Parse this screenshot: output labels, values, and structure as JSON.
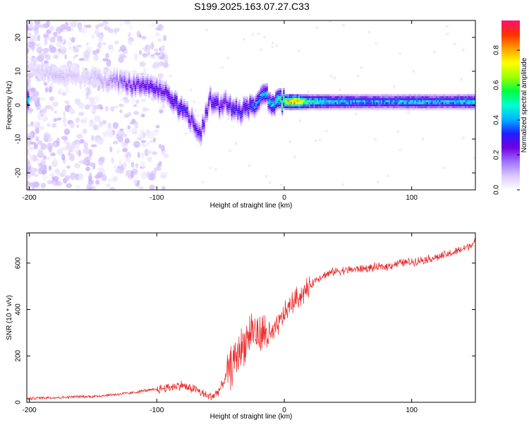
{
  "chart_data": [
    {
      "type": "heatmap",
      "title": "S199.2025.163.07.27.C33",
      "xlabel": "Height of straight line (km)",
      "ylabel": "Frequency (Hz)",
      "xlim": [
        -202,
        150
      ],
      "ylim": [
        -25,
        25
      ],
      "xticks": [
        "-200",
        "-100",
        "0",
        "100"
      ],
      "yticks": [
        "-20",
        "-10",
        "0",
        "10",
        "20"
      ],
      "grid": false,
      "colorbar": {
        "label": "Normalized spectral amplitude",
        "range": [
          0,
          0.97
        ],
        "ticks": [
          "0.0",
          "0.2",
          "0.4",
          "0.6",
          "0.8"
        ],
        "colormap": [
          "#ffffff",
          "#d9c8ff",
          "#a070ff",
          "#7000e0",
          "#2020ff",
          "#00b4ff",
          "#00ffd0",
          "#00ff40",
          "#a0ff00",
          "#ffff00",
          "#ffa000",
          "#ff3000",
          "#ff1070"
        ]
      },
      "ridge": [
        {
          "x": -200,
          "f": 12,
          "a": 0.05
        },
        {
          "x": -190,
          "f": 10,
          "a": 0.08
        },
        {
          "x": -180,
          "f": 9,
          "a": 0.1
        },
        {
          "x": -170,
          "f": 9,
          "a": 0.1
        },
        {
          "x": -160,
          "f": 8,
          "a": 0.08
        },
        {
          "x": -150,
          "f": 8,
          "a": 0.1
        },
        {
          "x": -140,
          "f": 7,
          "a": 0.12
        },
        {
          "x": -130,
          "f": 7,
          "a": 0.2
        },
        {
          "x": -120,
          "f": 6,
          "a": 0.25
        },
        {
          "x": -110,
          "f": 6,
          "a": 0.3
        },
        {
          "x": -100,
          "f": 5,
          "a": 0.3
        },
        {
          "x": -90,
          "f": 3,
          "a": 0.3
        },
        {
          "x": -85,
          "f": 0,
          "a": 0.35
        },
        {
          "x": -80,
          "f": -1,
          "a": 0.35
        },
        {
          "x": -75,
          "f": -3,
          "a": 0.3
        },
        {
          "x": -70,
          "f": -6,
          "a": 0.3
        },
        {
          "x": -65,
          "f": -8,
          "a": 0.3
        },
        {
          "x": -58,
          "f": 2,
          "a": 0.3
        },
        {
          "x": -55,
          "f": 0,
          "a": 0.35
        },
        {
          "x": -50,
          "f": 0,
          "a": 0.3
        },
        {
          "x": -45,
          "f": 1,
          "a": 0.3
        },
        {
          "x": -40,
          "f": -1,
          "a": 0.35
        },
        {
          "x": -35,
          "f": -2,
          "a": 0.35
        },
        {
          "x": -30,
          "f": -1,
          "a": 0.35
        },
        {
          "x": -25,
          "f": 0,
          "a": 0.4
        },
        {
          "x": -20,
          "f": 1,
          "a": 0.45
        },
        {
          "x": -15,
          "f": 3,
          "a": 0.45
        },
        {
          "x": -10,
          "f": 1,
          "a": 0.5
        },
        {
          "x": -5,
          "f": 1,
          "a": 0.55
        },
        {
          "x": 0,
          "f": 1,
          "a": 0.7
        },
        {
          "x": 5,
          "f": 1,
          "a": 0.9
        },
        {
          "x": 10,
          "f": 1,
          "a": 0.95
        },
        {
          "x": 20,
          "f": 1,
          "a": 0.6
        },
        {
          "x": 40,
          "f": 1,
          "a": 0.5
        },
        {
          "x": 60,
          "f": 1,
          "a": 0.45
        },
        {
          "x": 80,
          "f": 1,
          "a": 0.45
        },
        {
          "x": 100,
          "f": 1,
          "a": 0.5
        },
        {
          "x": 120,
          "f": 1,
          "a": 0.45
        },
        {
          "x": 140,
          "f": 1,
          "a": 0.5
        },
        {
          "x": 150,
          "f": 1,
          "a": 0.5
        }
      ]
    },
    {
      "type": "line",
      "xlabel": "Height of straight line (km)",
      "ylabel": "SNR (10 * v/v)",
      "xlim": [
        -202,
        150
      ],
      "ylim": [
        0,
        730
      ],
      "xticks": [
        "-200",
        "-100",
        "0",
        "100"
      ],
      "yticks": [
        "0",
        "200",
        "400",
        "600"
      ],
      "grid": false,
      "color": "#ee2222",
      "series": [
        {
          "x": [
            -202,
            -190,
            -180,
            -170,
            -160,
            -150,
            -140,
            -130,
            -120,
            -110,
            -100,
            -90,
            -80,
            -75,
            -70,
            -65,
            -60,
            -55,
            -50,
            -45,
            -40,
            -35,
            -30,
            -25,
            -20,
            -15,
            -10,
            -5,
            0,
            5,
            10,
            15,
            20,
            25,
            30,
            35,
            40,
            50,
            60,
            70,
            80,
            90,
            100,
            110,
            120,
            130,
            140,
            150
          ],
          "values": [
            15,
            20,
            20,
            22,
            25,
            25,
            30,
            35,
            40,
            50,
            55,
            65,
            75,
            60,
            60,
            40,
            25,
            30,
            60,
            120,
            170,
            220,
            270,
            320,
            280,
            300,
            280,
            330,
            380,
            420,
            450,
            470,
            500,
            530,
            545,
            555,
            565,
            570,
            575,
            580,
            585,
            600,
            605,
            615,
            625,
            640,
            660,
            690
          ]
        }
      ]
    }
  ]
}
